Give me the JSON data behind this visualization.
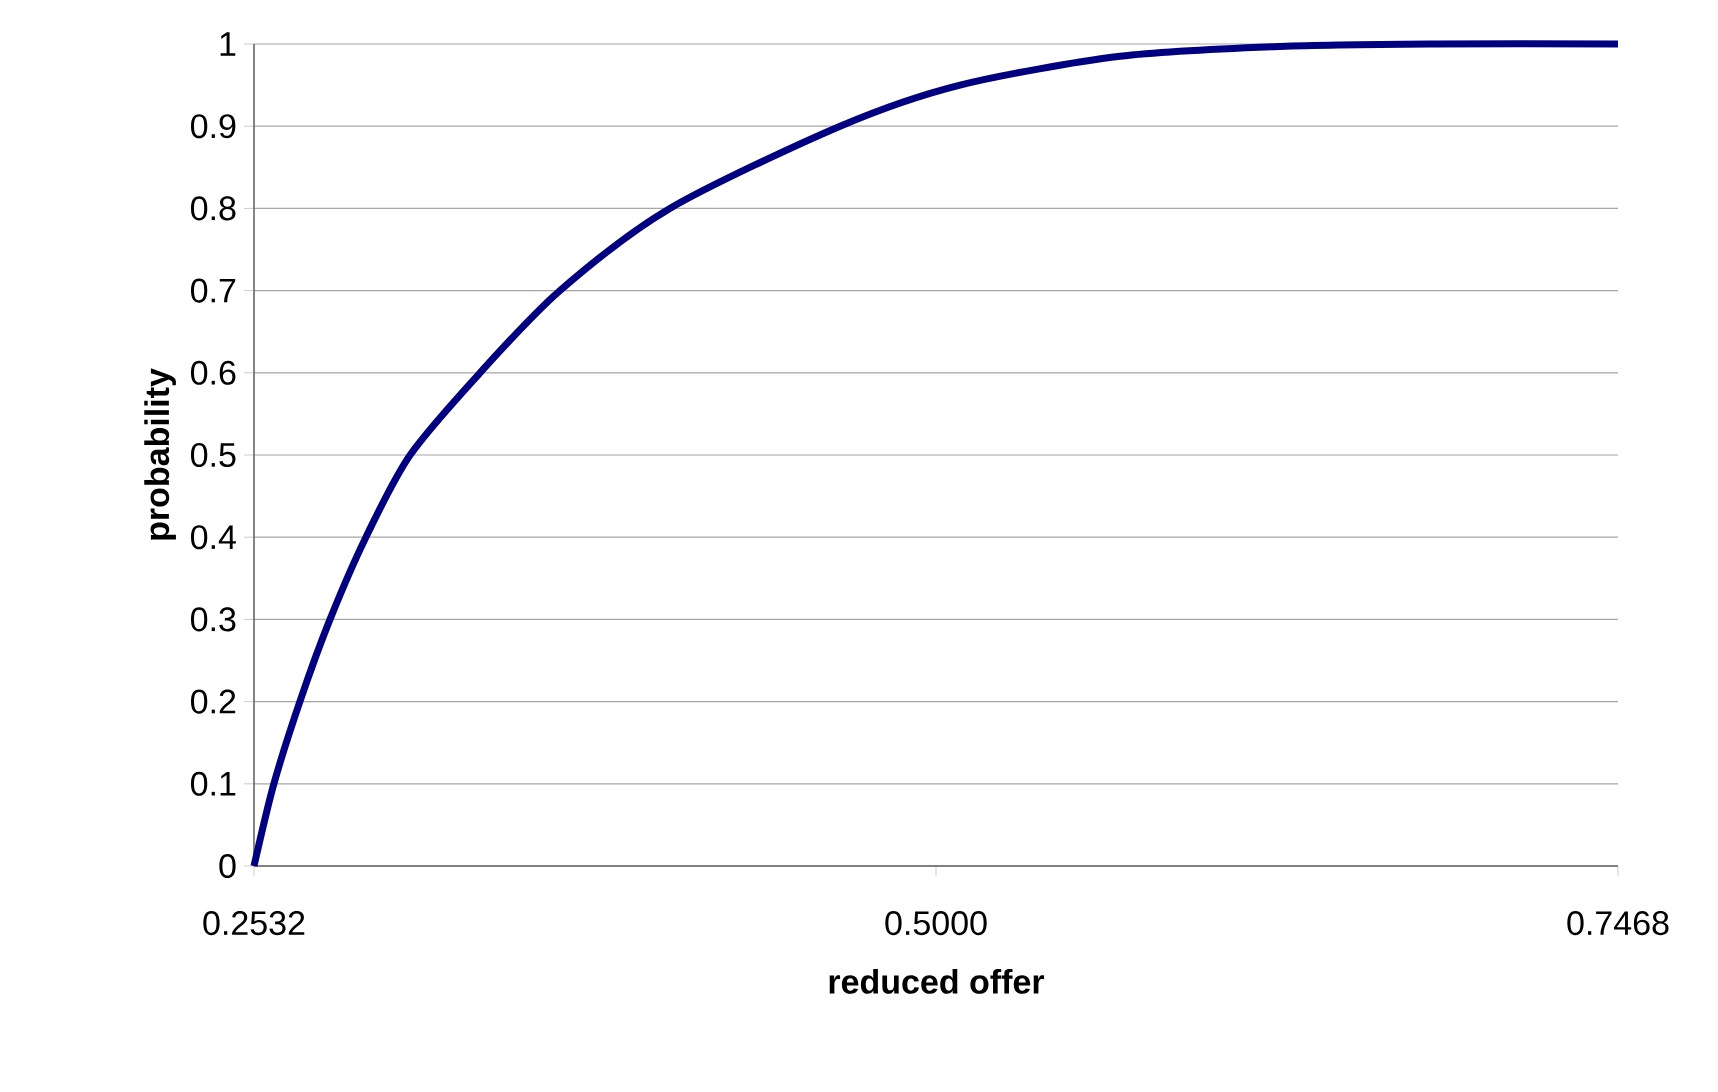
{
  "chart_data": {
    "type": "line",
    "xlabel": "reduced offer",
    "ylabel": "probability",
    "x": [
      0.2532,
      0.2604,
      0.2698,
      0.2807,
      0.2937,
      0.3097,
      0.335,
      0.3639,
      0.4037,
      0.4653,
      0.5087,
      0.5666,
      0.6245,
      0.68,
      0.7468
    ],
    "series": [
      {
        "color": "#000080",
        "values": [
          0,
          0.1,
          0.2,
          0.3,
          0.4,
          0.5,
          0.6,
          0.7,
          0.8,
          0.9,
          0.95,
          0.985,
          0.997,
          1.0,
          1.0
        ]
      }
    ],
    "xlim": [
      0.2532,
      0.7468
    ],
    "ylim": [
      0,
      1
    ],
    "xticks": [
      {
        "value": 0.2532,
        "label": "0.2532"
      },
      {
        "value": 0.5,
        "label": "0.5000"
      },
      {
        "value": 0.7468,
        "label": "0.7468"
      }
    ],
    "yticks": [
      0,
      0.1,
      0.2,
      0.3,
      0.4,
      0.5,
      0.6,
      0.7,
      0.8,
      0.9,
      1
    ],
    "grid": "y",
    "marker": "none",
    "line_style": "solid"
  }
}
